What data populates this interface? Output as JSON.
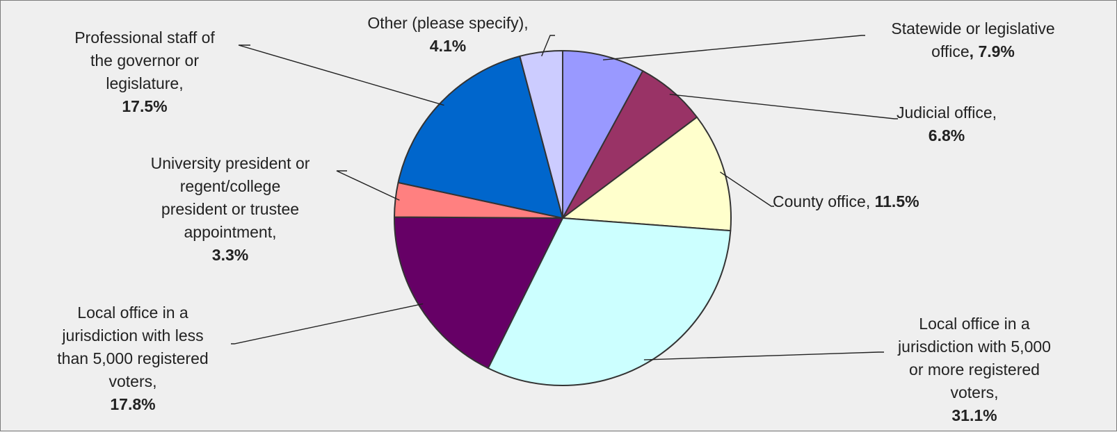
{
  "chart_data": {
    "type": "pie",
    "title": "",
    "slices": [
      {
        "label": "Statewide or legislative office",
        "value": 7.9,
        "value_label": "7.9%",
        "color": "#9999ff"
      },
      {
        "label": "Judicial office",
        "value": 6.8,
        "value_label": "6.8%",
        "color": "#993366"
      },
      {
        "label": "County office",
        "value": 11.5,
        "value_label": "11.5%",
        "color": "#ffffcc"
      },
      {
        "label": "Local office in a jurisdiction with 5,000 or more registered voters",
        "value": 31.1,
        "value_label": "31.1%",
        "color": "#ccffff"
      },
      {
        "label": "Local office in a jurisdiction with less than 5,000 registered voters",
        "value": 17.8,
        "value_label": "17.8%",
        "color": "#660066"
      },
      {
        "label": "University president or regent/college president or trustee appointment",
        "value": 3.3,
        "value_label": "3.3%",
        "color": "#ff8080"
      },
      {
        "label": "Professional staff of the governor or legislature",
        "value": 17.5,
        "value_label": "17.5%",
        "color": "#0066cc"
      },
      {
        "label": "Other (please specify)",
        "value": 4.1,
        "value_label": "4.1%",
        "color": "#ccccff"
      }
    ]
  },
  "labels": {
    "statewide": {
      "lines": [
        "Statewide or legislative",
        "office"
      ],
      "sep": ", ",
      "pct": "7.9%"
    },
    "judicial": {
      "lines": [
        "Judicial office,"
      ],
      "pct": "6.8%"
    },
    "county": {
      "lines": [
        "County office,"
      ],
      "pct": "11.5%"
    },
    "local_large": {
      "lines": [
        "Local office in a",
        "jurisdiction with 5,000",
        "or more registered",
        "voters,"
      ],
      "pct": "31.1%"
    },
    "local_small": {
      "lines": [
        "Local office in a",
        "jurisdiction with less",
        "than 5,000 registered",
        "voters,"
      ],
      "pct": "17.8%"
    },
    "university": {
      "lines": [
        "University president or",
        "regent/college",
        "president or trustee",
        "appointment,"
      ],
      "pct": "3.3%"
    },
    "professional": {
      "lines": [
        "Professional staff of",
        "the governor or",
        "legislature,"
      ],
      "pct": "17.5%"
    },
    "other": {
      "lines": [
        "Other (please specify),"
      ],
      "pct": "4.1%"
    }
  }
}
